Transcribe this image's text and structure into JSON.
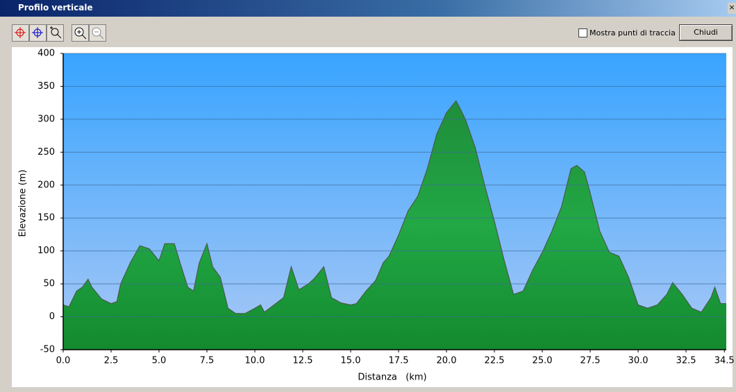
{
  "window": {
    "title": "Profilo verticale",
    "checkbox_label": "Mostra punti di traccia",
    "button": "Chiudi"
  },
  "chart_data": {
    "type": "area",
    "x_label": "Distanza   (km)",
    "y_label": "Elevazione (m)",
    "x": [
      0,
      0.3,
      0.7,
      1.0,
      1.3,
      1.5,
      2.0,
      2.5,
      2.8,
      3.0,
      3.5,
      4.0,
      4.5,
      5.0,
      5.3,
      5.8,
      6.1,
      6.5,
      6.8,
      7.1,
      7.5,
      7.8,
      8.2,
      8.6,
      9.0,
      9.5,
      10.0,
      10.3,
      10.5,
      11.0,
      11.5,
      11.9,
      12.3,
      12.8,
      13.1,
      13.6,
      14.0,
      14.5,
      15.0,
      15.3,
      15.8,
      16.3,
      16.7,
      17.0,
      17.5,
      18.0,
      18.5,
      19.0,
      19.5,
      20.0,
      20.5,
      20.7,
      21.0,
      21.5,
      22.0,
      22.5,
      23.0,
      23.5,
      24.0,
      24.5,
      25.0,
      25.5,
      26.0,
      26.5,
      26.8,
      27.2,
      27.5,
      28.0,
      28.5,
      29.0,
      29.5,
      30.0,
      30.5,
      31.0,
      31.5,
      31.8,
      32.3,
      32.8,
      33.3,
      33.8,
      34.0,
      34.3,
      34.6
    ],
    "values": [
      18,
      15,
      39,
      45,
      57,
      45,
      27,
      20,
      23,
      50,
      82,
      108,
      103,
      85,
      111,
      111,
      82,
      45,
      39,
      82,
      111,
      76,
      60,
      13,
      5,
      5,
      13,
      18,
      7,
      18,
      29,
      76,
      41,
      50,
      58,
      76,
      29,
      21,
      18,
      20,
      39,
      55,
      82,
      92,
      124,
      161,
      183,
      225,
      278,
      310,
      328,
      317,
      299,
      257,
      199,
      145,
      87,
      34,
      39,
      71,
      98,
      130,
      167,
      225,
      230,
      220,
      188,
      130,
      98,
      92,
      60,
      18,
      13,
      18,
      34,
      52,
      34,
      13,
      7,
      29,
      45,
      20,
      20
    ],
    "color": "#22a845",
    "xlim": [
      0,
      34.6
    ],
    "ylim": [
      -50,
      400
    ],
    "xticks": [
      {
        "value": 0,
        "label": "0.0"
      },
      2.5,
      {
        "value": 5,
        "label": "5.0"
      },
      7.5,
      {
        "value": 10,
        "label": "10.0"
      },
      12.5,
      {
        "value": 15,
        "label": "15.0"
      },
      17.5,
      {
        "value": 20,
        "label": "20.0"
      },
      22.5,
      {
        "value": 25,
        "label": "25.0"
      },
      27.5,
      {
        "value": 30,
        "label": "30.0"
      },
      32.5,
      34.5
    ],
    "yticks": [
      -50,
      0,
      50,
      100,
      150,
      200,
      250,
      300,
      350,
      400
    ],
    "grid": true
  }
}
